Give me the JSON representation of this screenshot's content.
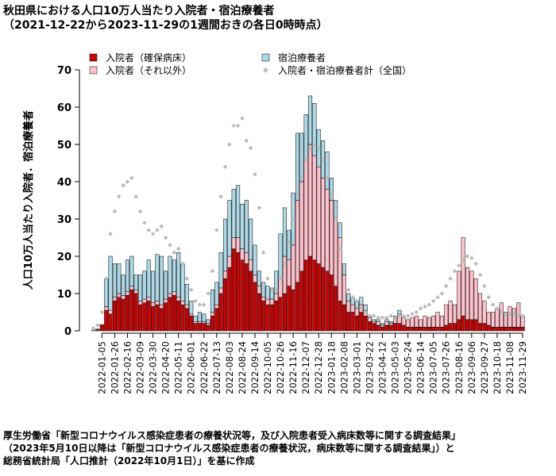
{
  "chart_data": {
    "type": "stacked_bar_with_points",
    "title": "秋田県における人口10万人当たり入院者・宿泊療養者",
    "subtitle": "（2021-12-22から2023-11-29の1週間おきの各日0時時点）",
    "y_label": "人口10万人当たり入院者．宿泊療養者",
    "source": [
      "厚生労働省「新型コロナウイルス感染症患者の療養状況等，及び入院患者受入病床数等に関する調査結果」",
      "（2023年5月10日以降は「新型コロナウイルス感染症患者の療養状況，病床数等に関する調査結果」）と",
      "総務省統計局「人口推計（2022年10月1日）」を基に作成"
    ],
    "legend": "top",
    "ylim": [
      0,
      70
    ],
    "yticks": [
      0,
      10,
      20,
      30,
      40,
      50,
      60,
      70
    ],
    "categories": [
      null,
      null,
      "2022-01-05",
      null,
      null,
      "2022-01-26",
      null,
      null,
      "2022-02-16",
      null,
      null,
      "2022-03-09",
      null,
      null,
      "2022-03-30",
      null,
      null,
      "2022-04-20",
      null,
      null,
      "2022-05-11",
      null,
      null,
      "2022-06-01",
      null,
      null,
      "2022-06-22",
      null,
      null,
      "2022-07-13",
      null,
      null,
      "2022-08-03",
      null,
      null,
      "2022-08-24",
      null,
      null,
      "2022-09-14",
      null,
      null,
      "2022-10-05",
      null,
      null,
      "2022-10-26",
      null,
      null,
      "2022-11-16",
      null,
      null,
      "2022-12-07",
      null,
      null,
      "2022-12-28",
      null,
      null,
      "2023-01-18",
      null,
      null,
      "2023-02-08",
      null,
      null,
      "2023-03-01",
      null,
      null,
      "2023-03-22",
      null,
      null,
      "2023-04-12",
      null,
      null,
      "2023-05-03",
      null,
      null,
      "2023-05-24",
      null,
      null,
      "2023-06-14",
      null,
      null,
      "2023-07-05",
      null,
      null,
      "2023-07-26",
      null,
      null,
      "2023-08-16",
      null,
      null,
      "2023-09-06",
      null,
      null,
      "2023-09-27",
      null,
      null,
      "2023-10-18",
      null,
      null,
      "2023-11-08",
      null,
      null,
      "2023-11-29"
    ],
    "series": [
      {
        "name": "入院者（確保病床）",
        "color": "#cc0000",
        "kind": "bar",
        "values": [
          0,
          0.3,
          1.5,
          5.5,
          4.5,
          8,
          9,
          8.5,
          9.5,
          11,
          10,
          7,
          7.5,
          8,
          6.5,
          7,
          6,
          7.5,
          9,
          9.5,
          8,
          7,
          6,
          4,
          2,
          2,
          2,
          1.5,
          4,
          6,
          10,
          14,
          17,
          22,
          21,
          19,
          18,
          16,
          13,
          10,
          8,
          7,
          7,
          8,
          9,
          10,
          12,
          11,
          13,
          16,
          19,
          20,
          19,
          18,
          17,
          16,
          15,
          12,
          8,
          7,
          5,
          5,
          4,
          5,
          4,
          2.5,
          2,
          1.5,
          1,
          1.5,
          1.5,
          2,
          2,
          1.5,
          1,
          1,
          1,
          1,
          1,
          1,
          1,
          1,
          1,
          1.5,
          2,
          2,
          3,
          4,
          3,
          3,
          3,
          2,
          2,
          1.5,
          1,
          1,
          1,
          1,
          1,
          1,
          1,
          1
        ]
      },
      {
        "name": "入院者（それ以外）",
        "color": "#ffc0cb",
        "kind": "bar",
        "values": [
          0,
          0,
          0.2,
          1,
          1,
          1,
          1,
          1,
          1,
          1,
          1,
          1,
          1,
          1,
          1,
          1,
          1,
          1,
          1,
          1,
          1,
          1,
          1,
          0.5,
          0.5,
          0.5,
          0.5,
          0.5,
          1,
          1,
          1.5,
          2,
          3,
          3,
          4,
          3,
          3,
          3,
          2,
          2,
          1,
          1.5,
          1.5,
          2,
          5,
          10,
          7,
          12,
          22,
          24,
          27,
          30,
          28,
          26,
          24,
          22,
          20,
          18,
          17,
          8,
          3,
          2,
          2,
          2,
          1.5,
          1,
          0.5,
          1,
          0.5,
          1,
          0.5,
          1.5,
          2.5,
          2,
          2,
          2.5,
          3,
          2,
          3,
          2.5,
          3,
          4,
          3,
          5.5,
          6,
          5,
          13,
          21,
          14,
          13,
          11,
          8,
          6,
          3.5,
          4,
          5,
          6.5,
          4,
          5.5,
          5,
          6.5,
          3
        ]
      },
      {
        "name": "宿泊療養者",
        "color": "#add8e6",
        "kind": "bar",
        "values": [
          0.2,
          0.2,
          0,
          7.5,
          14.5,
          9,
          8,
          5.5,
          8.5,
          8,
          4,
          7,
          7.5,
          10,
          8.5,
          12.5,
          13,
          7.5,
          10,
          8.5,
          12,
          10,
          5.5,
          3.5,
          1.5,
          2.5,
          2,
          1,
          6,
          6,
          9.5,
          14,
          15,
          13,
          14,
          12,
          14,
          11,
          8,
          4,
          4,
          3.5,
          3,
          6,
          12,
          13,
          8,
          14,
          18,
          13,
          12,
          13,
          14,
          10,
          10,
          10,
          6,
          5,
          4,
          3,
          2,
          2,
          2,
          2,
          1.5,
          0.5,
          0.5,
          0.5,
          0.5,
          0.5,
          0.5,
          0.5,
          1,
          0,
          0,
          0,
          0,
          0,
          0,
          0,
          0,
          0,
          0,
          0,
          0,
          0,
          0,
          0,
          0,
          0,
          0,
          0,
          0,
          0,
          0,
          0,
          0,
          0,
          0,
          0,
          0,
          0
        ]
      },
      {
        "name": "入院者・宿泊療養者計（全国）",
        "color": "#bbbbbb",
        "kind": "point",
        "values": [
          0.7,
          1.5,
          5,
          14,
          26,
          32,
          36,
          39,
          40,
          41,
          36,
          32,
          29,
          27,
          26,
          27,
          28,
          25,
          23,
          21,
          22,
          18,
          14,
          11,
          8,
          7,
          7,
          10,
          16,
          27,
          36,
          44,
          50,
          55,
          55,
          57,
          51,
          49,
          42,
          33,
          21,
          14,
          11,
          11,
          14,
          18,
          24,
          30,
          37,
          41,
          46,
          49,
          50,
          49,
          46,
          41,
          36,
          30,
          22,
          16,
          11,
          9,
          8,
          6,
          5,
          4,
          4,
          3.5,
          3.5,
          3.5,
          4,
          3.5,
          4,
          4,
          4,
          4.5,
          5,
          6,
          6.5,
          7,
          8,
          9,
          10,
          12,
          14,
          16,
          17.5,
          19,
          20,
          19.5,
          18,
          15,
          12,
          9,
          7,
          6,
          5,
          4.5,
          4.5,
          4.5,
          4,
          4
        ]
      }
    ]
  }
}
